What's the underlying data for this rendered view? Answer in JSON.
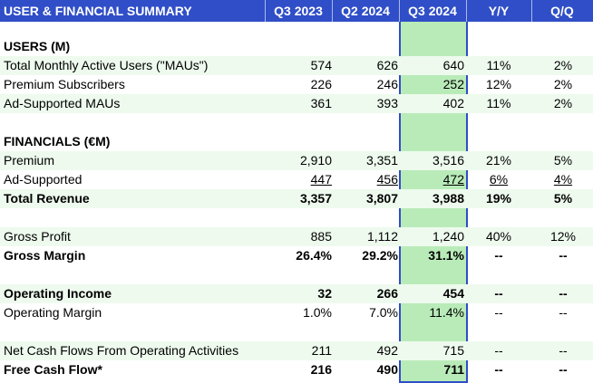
{
  "header": {
    "title": "USER & FINANCIAL SUMMARY",
    "columns": [
      "Q3 2023",
      "Q2 2024",
      "Q3 2024",
      "Y/Y",
      "Q/Q"
    ]
  },
  "users": {
    "section_label": "USERS (M)",
    "rows": [
      {
        "label": "Total Monthly Active Users (\"MAUs\")",
        "q3_2023": "574",
        "q2_2024": "626",
        "q3_2024": "640",
        "yy": "11%",
        "qq": "2%"
      },
      {
        "label": "Premium Subscribers",
        "q3_2023": "226",
        "q2_2024": "246",
        "q3_2024": "252",
        "yy": "12%",
        "qq": "2%"
      },
      {
        "label": "Ad-Supported MAUs",
        "q3_2023": "361",
        "q2_2024": "393",
        "q3_2024": "402",
        "yy": "11%",
        "qq": "2%"
      }
    ]
  },
  "financials": {
    "section_label": "FINANCIALS (€M)",
    "rows": [
      {
        "label": "Premium",
        "q3_2023": "2,910",
        "q2_2024": "3,351",
        "q3_2024": "3,516",
        "yy": "21%",
        "qq": "5%"
      },
      {
        "label": "Ad-Supported",
        "q3_2023": "447",
        "q2_2024": "456",
        "q3_2024": "472",
        "yy": "6%",
        "qq": "4%"
      },
      {
        "label": "Total Revenue",
        "q3_2023": "3,357",
        "q2_2024": "3,807",
        "q3_2024": "3,988",
        "yy": "19%",
        "qq": "5%"
      },
      {
        "label": "Gross Profit",
        "q3_2023": "885",
        "q2_2024": "1,112",
        "q3_2024": "1,240",
        "yy": "40%",
        "qq": "12%"
      },
      {
        "label": "Gross Margin",
        "q3_2023": "26.4%",
        "q2_2024": "29.2%",
        "q3_2024": "31.1%",
        "yy": "--",
        "qq": "--"
      },
      {
        "label": "Operating Income",
        "q3_2023": "32",
        "q2_2024": "266",
        "q3_2024": "454",
        "yy": "--",
        "qq": "--"
      },
      {
        "label": "Operating Margin",
        "q3_2023": "1.0%",
        "q2_2024": "7.0%",
        "q3_2024": "11.4%",
        "yy": "--",
        "qq": "--"
      },
      {
        "label": "Net Cash Flows From Operating Activities",
        "q3_2023": "211",
        "q2_2024": "492",
        "q3_2024": "715",
        "yy": "--",
        "qq": "--"
      },
      {
        "label": "Free Cash Flow*",
        "q3_2023": "216",
        "q2_2024": "490",
        "q3_2024": "711",
        "yy": "--",
        "qq": "--"
      }
    ]
  },
  "colors": {
    "header_bg": "#2f4ec7",
    "stripe_bg": "#eefaee",
    "highlight_col_bg": "#b9ebb9",
    "highlight_border": "#2f4ec7"
  }
}
